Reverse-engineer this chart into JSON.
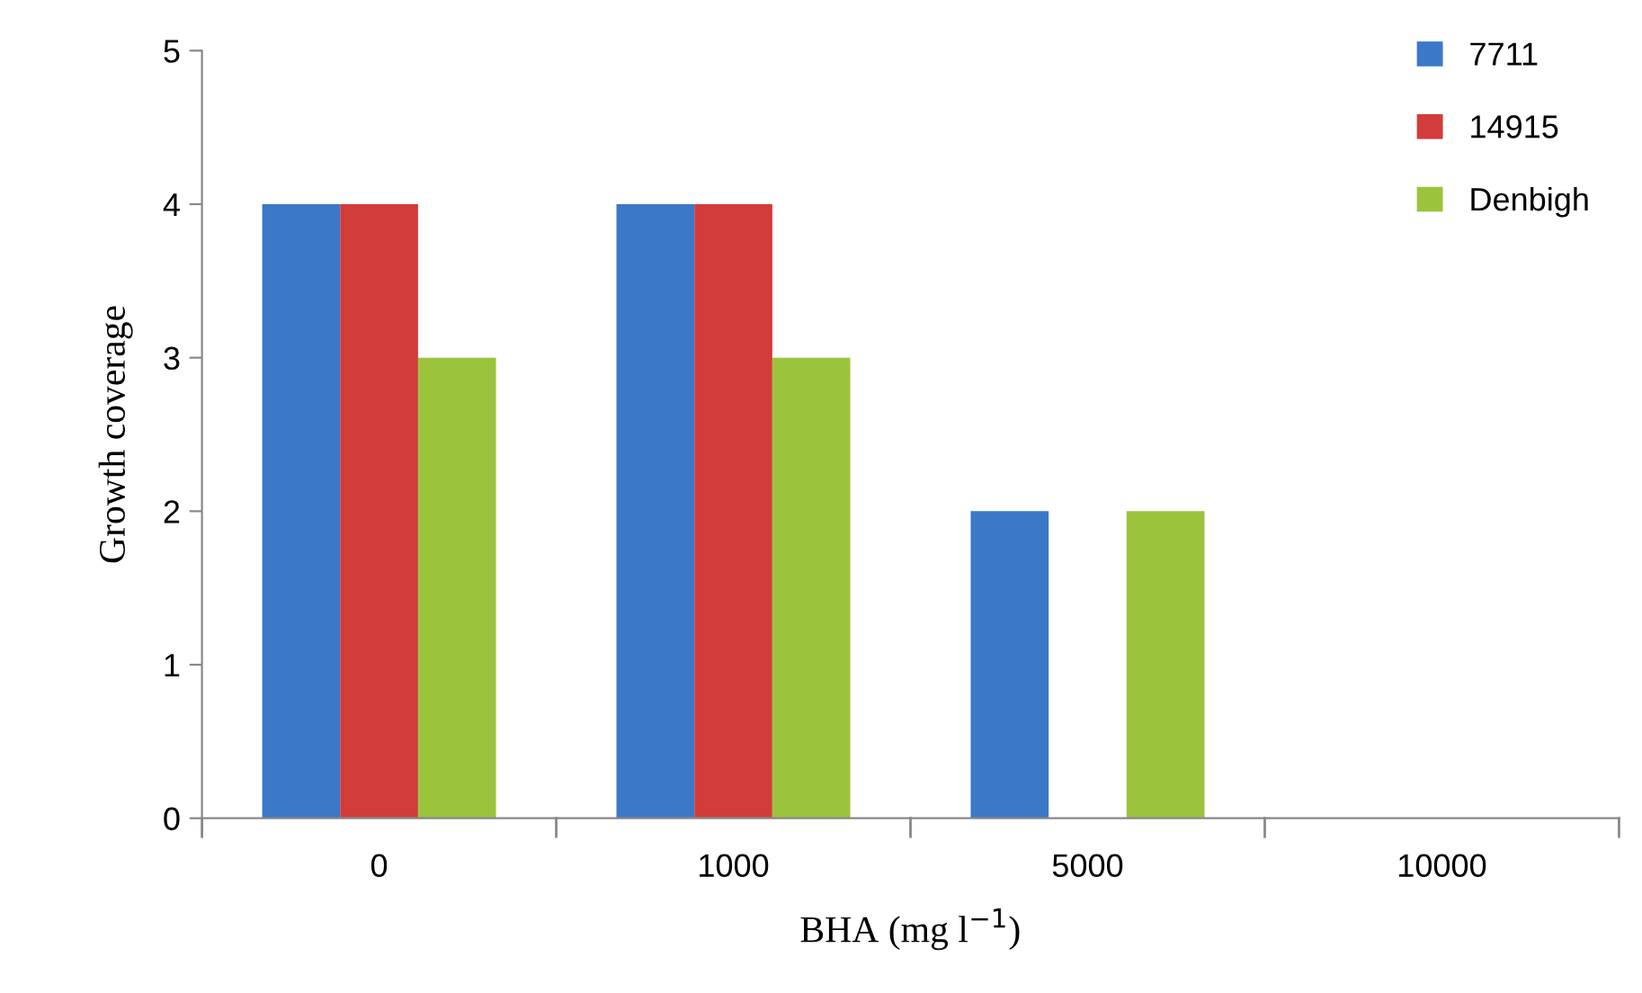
{
  "chart_data": {
    "type": "bar",
    "xlabel": "BHA (mg l$^{−1}$)",
    "ylabel": "Growth coverage",
    "categories": [
      "0",
      "1000",
      "5000",
      "10000"
    ],
    "series": [
      {
        "name": "7711",
        "color": "#3b78c8",
        "values": [
          4,
          4,
          2,
          0
        ]
      },
      {
        "name": "14915",
        "color": "#d23c3a",
        "values": [
          4,
          4,
          0,
          0
        ]
      },
      {
        "name": "Denbigh",
        "color": "#9bc43c",
        "values": [
          3,
          3,
          2,
          0
        ]
      }
    ],
    "ylim": [
      0,
      5
    ],
    "yticks": [
      0,
      1,
      2,
      3,
      4,
      5
    ],
    "grid": false,
    "legend": "top right"
  }
}
